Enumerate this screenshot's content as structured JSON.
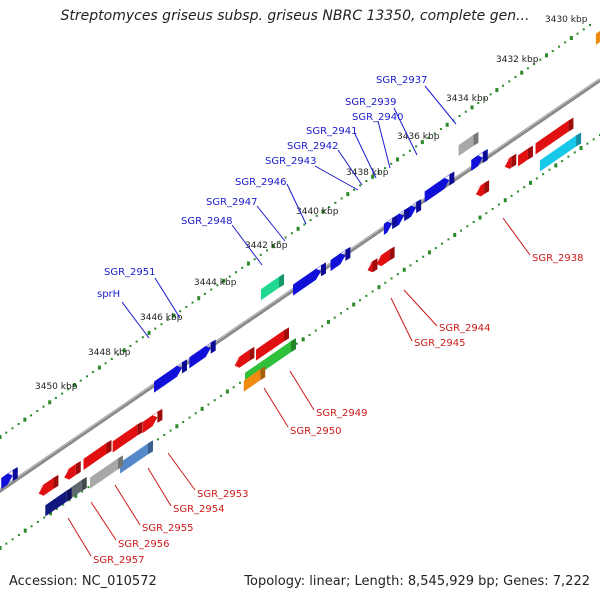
{
  "title": "Streptomyces griseus subsp. griseus NBRC 13350, complete gen...",
  "accession": "Accession: NC_010572",
  "summary": "Topology: linear; Length: 8,545,929 bp; Genes: 7,222",
  "colors": {
    "upper_label": "#1a1acc",
    "lower_label": "#cc1a1a",
    "backbone": "#7a7a7a"
  },
  "ticks": [
    "3430 kbp",
    "3432 kbp",
    "3434 kbp",
    "3436 kbp",
    "3438 kbp",
    "3440 kbp",
    "3442 kbp",
    "3444 kbp",
    "3446 kbp",
    "3448 kbp",
    "3450 kbp"
  ],
  "upper_labels": [
    "SGR_2937",
    "SGR_2939",
    "SGR_2940",
    "SGR_2941",
    "SGR_2942",
    "SGR_2943",
    "SGR_2946",
    "SGR_2947",
    "SGR_2948",
    "SGR_2951",
    "sprH"
  ],
  "lower_labels": [
    "SGR_2938",
    "SGR_2944",
    "SGR_2945",
    "SGR_2949",
    "SGR_2950",
    "SGR_2953",
    "SGR_2954",
    "SGR_2955",
    "SGR_2956",
    "SGR_2957"
  ]
}
